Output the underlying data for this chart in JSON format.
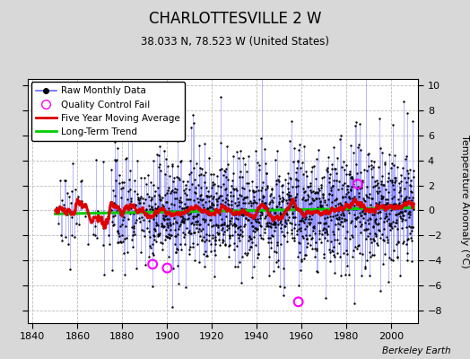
{
  "title": "CHARLOTTESVILLE 2 W",
  "subtitle": "38.033 N, 78.523 W (United States)",
  "ylabel": "Temperature Anomaly (°C)",
  "attribution": "Berkeley Earth",
  "xlim": [
    1838,
    2012
  ],
  "ylim": [
    -9,
    10.5
  ],
  "yticks": [
    -8,
    -6,
    -4,
    -2,
    0,
    2,
    4,
    6,
    8,
    10
  ],
  "xticks": [
    1840,
    1860,
    1880,
    1900,
    1920,
    1940,
    1960,
    1980,
    2000
  ],
  "bg_color": "#d8d8d8",
  "plot_bg_color": "#ffffff",
  "raw_line_color": "#6666ff",
  "raw_dot_color": "#000000",
  "moving_avg_color": "#dd0000",
  "trend_color": "#00cc00",
  "qc_fail_color": "#ff00ff",
  "seed": 12345,
  "data_start_year": 1850,
  "data_end_year": 2010,
  "sparse_end_year": 1875,
  "dense_start_year": 1893,
  "qc_fail_positions": [
    [
      1893.5,
      -4.3
    ],
    [
      1900.0,
      -4.6
    ],
    [
      1958.5,
      -7.3
    ],
    [
      1985.0,
      2.1
    ]
  ],
  "trend_slope": 0.003,
  "trend_intercept": -0.3
}
